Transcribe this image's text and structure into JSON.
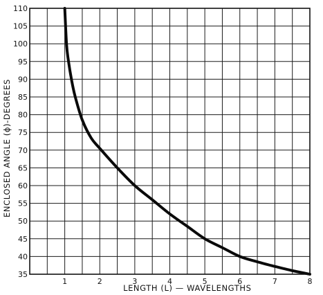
{
  "chart_data": {
    "type": "line",
    "title": "",
    "xlabel": "LENGTH (L) — WAVELENGTHS",
    "ylabel": "ENCLOSED ANGLE (ϕ)-DEGREES",
    "xlim": [
      0,
      8
    ],
    "ylim": [
      35,
      110
    ],
    "x_ticks": [
      1,
      2,
      3,
      4,
      5,
      6,
      7,
      8
    ],
    "y_ticks": [
      35,
      40,
      45,
      50,
      55,
      60,
      65,
      70,
      75,
      80,
      85,
      90,
      95,
      100,
      105,
      110
    ],
    "x_grid_step": 0.5,
    "y_grid_step": 5,
    "grid": true,
    "legend": "none",
    "series": [
      {
        "x": [
          1.0,
          1.05,
          1.1,
          1.2,
          1.3,
          1.5,
          1.75,
          2.0,
          2.5,
          3.0,
          3.5,
          4.0,
          4.5,
          5.0,
          5.5,
          6.0,
          6.5,
          7.0,
          7.5,
          8.0
        ],
        "y": [
          110,
          100,
          95.5,
          89.5,
          85,
          78.5,
          73.5,
          70.5,
          65,
          60,
          56,
          52,
          48.5,
          45,
          42.5,
          40,
          38.5,
          37.2,
          36,
          35
        ]
      }
    ]
  }
}
